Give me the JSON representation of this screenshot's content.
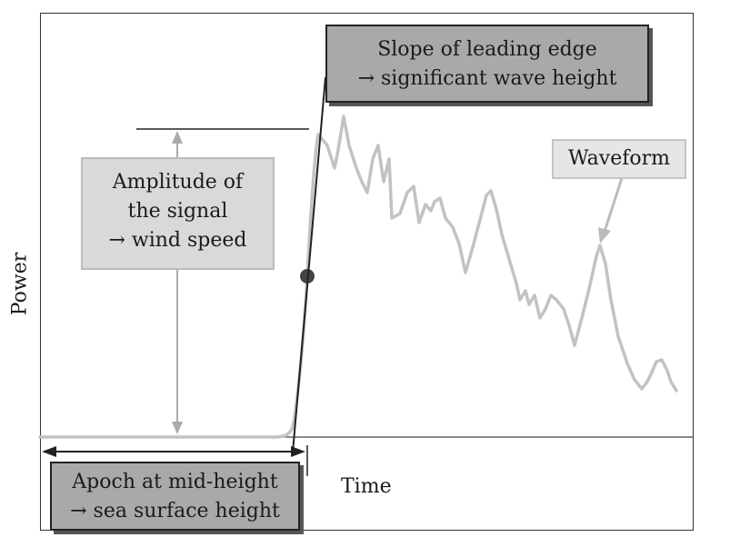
{
  "axes": {
    "ylabel": "Power",
    "xlabel": "Time"
  },
  "annotations": {
    "slope": {
      "line1": "Slope of leading edge",
      "line2": "→ significant wave height"
    },
    "amplitude": {
      "line1": "Amplitude of",
      "line2": "the signal",
      "line3": "→ wind speed"
    },
    "waveform": {
      "label": "Waveform"
    },
    "epoch": {
      "line1": "Apoch at mid-height",
      "line2": "→ sea surface height"
    }
  },
  "colors": {
    "waveform": "#c2c2c2",
    "dark_box": "#a9a9a9",
    "light_box": "#d9d9d9",
    "frame": "#333333"
  }
}
